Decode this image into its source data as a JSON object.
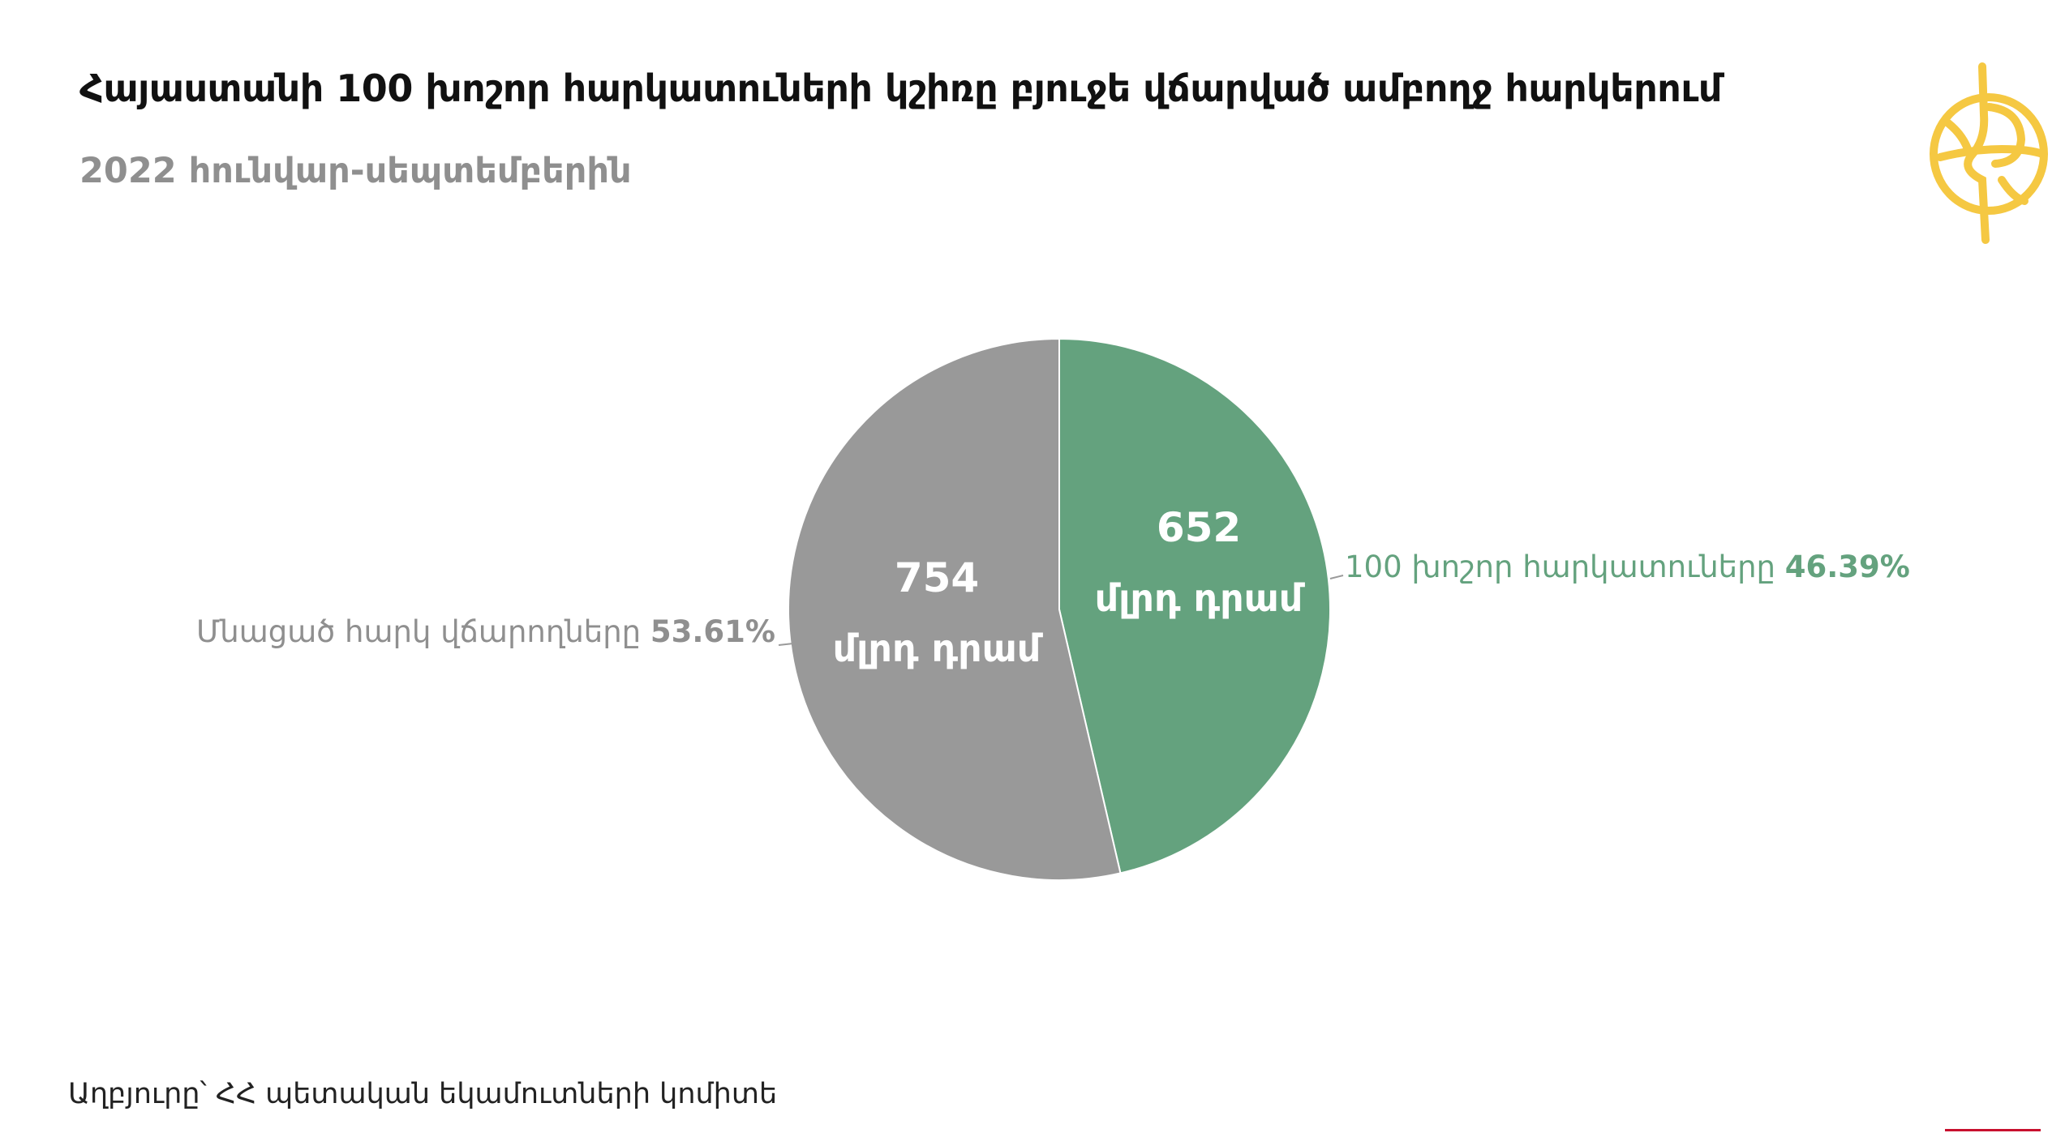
{
  "title": "Հայաստանի 100 խոշոր հարկատուների կշիռը բյուջե վճարված ամբողջ հարկերում",
  "subtitle": "2022 հունվար-սեպտեմբերին",
  "source": "Աղբյուրը՝ ՀՀ պետական եկամուտների կոմիտե",
  "logo_icon": "publisher-logo-icon",
  "chart_data": {
    "type": "pie",
    "unit": "մլրդ դրամ",
    "slices": [
      {
        "name": "100 խոշոր հարկատուները",
        "value": 652,
        "percent": "46.39%",
        "value_label": "652",
        "unit_label": "մլրդ դրամ",
        "color": "#64a27e"
      },
      {
        "name": "Մնացած հարկ վճարողները",
        "value": 754,
        "percent": "53.61%",
        "value_label": "754",
        "unit_label": "մլրդ դրամ",
        "color": "#999999"
      }
    ],
    "colors": {
      "label_green": "#64a27e",
      "label_gray": "#8f8f8f",
      "inner_text": "#ffffff"
    }
  }
}
